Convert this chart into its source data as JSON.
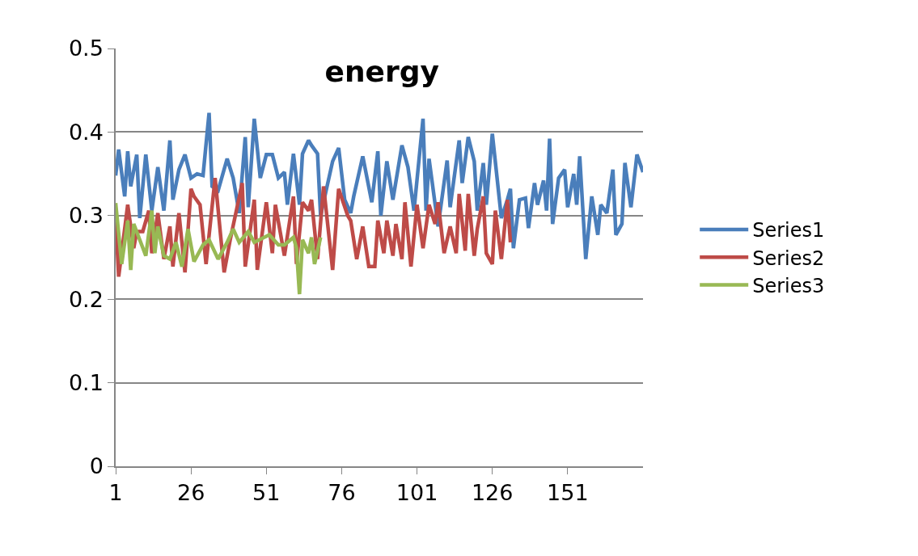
{
  "chart_data": {
    "type": "line",
    "title": "energy",
    "xlim": [
      1,
      176
    ],
    "xticks": [
      1,
      26,
      51,
      76,
      101,
      126,
      151
    ],
    "ylim": [
      0,
      0.5
    ],
    "yticks": [
      0,
      0.1,
      0.2,
      0.3,
      0.4,
      0.5
    ],
    "grid": "y",
    "legend": "right",
    "marker": "none",
    "line_style": "solid",
    "series": [
      {
        "name": "Series1",
        "color": "#4a7ebb",
        "x": [
          1,
          2,
          4,
          5,
          6,
          8,
          9,
          11,
          13,
          15,
          17,
          19,
          20,
          22,
          24,
          26,
          28,
          30,
          32,
          33,
          35,
          38,
          40,
          42,
          44,
          45,
          47,
          49,
          51,
          53,
          55,
          57,
          58,
          60,
          62,
          63,
          65,
          66,
          68,
          69,
          73,
          75,
          77,
          79,
          80,
          83,
          86,
          88,
          89,
          91,
          93,
          96,
          98,
          100,
          103,
          104,
          105,
          108,
          111,
          112,
          115,
          116,
          118,
          120,
          121,
          123,
          124,
          126,
          129,
          131,
          132,
          133,
          135,
          137,
          138,
          140,
          141,
          143,
          144,
          145,
          146,
          148,
          150,
          151,
          153,
          154,
          155,
          157,
          159,
          161,
          162,
          164,
          166,
          167,
          169,
          170,
          172,
          174,
          176
        ],
        "values": [
          0.348,
          0.379,
          0.323,
          0.377,
          0.335,
          0.373,
          0.297,
          0.373,
          0.306,
          0.358,
          0.306,
          0.39,
          0.319,
          0.355,
          0.373,
          0.345,
          0.35,
          0.348,
          0.423,
          0.335,
          0.33,
          0.368,
          0.345,
          0.303,
          0.394,
          0.31,
          0.416,
          0.345,
          0.373,
          0.373,
          0.345,
          0.352,
          0.313,
          0.374,
          0.313,
          0.374,
          0.39,
          0.384,
          0.374,
          0.3,
          0.365,
          0.381,
          0.319,
          0.303,
          0.323,
          0.371,
          0.316,
          0.377,
          0.3,
          0.365,
          0.319,
          0.384,
          0.358,
          0.306,
          0.416,
          0.306,
          0.368,
          0.287,
          0.366,
          0.31,
          0.39,
          0.339,
          0.394,
          0.365,
          0.306,
          0.363,
          0.313,
          0.398,
          0.297,
          0.319,
          0.332,
          0.261,
          0.319,
          0.321,
          0.285,
          0.339,
          0.313,
          0.342,
          0.306,
          0.392,
          0.29,
          0.345,
          0.355,
          0.31,
          0.35,
          0.313,
          0.371,
          0.248,
          0.323,
          0.277,
          0.313,
          0.303,
          0.355,
          0.277,
          0.29,
          0.363,
          0.31,
          0.373,
          0.352
        ]
      },
      {
        "name": "Series2",
        "color": "#be4b48",
        "x": [
          1,
          2,
          5,
          7,
          8,
          10,
          12,
          13,
          15,
          17,
          19,
          20,
          22,
          24,
          26,
          27,
          29,
          31,
          34,
          37,
          39,
          43,
          44,
          47,
          48,
          51,
          53,
          54,
          57,
          60,
          61,
          63,
          65,
          66,
          68,
          70,
          73,
          75,
          78,
          79,
          81,
          83,
          85,
          87,
          88,
          90,
          91,
          93,
          94,
          96,
          97,
          99,
          101,
          103,
          105,
          107,
          108,
          110,
          112,
          114,
          115,
          117,
          118,
          120,
          121,
          123,
          124,
          126,
          127,
          129,
          131,
          132
        ],
        "values": [
          0.297,
          0.227,
          0.313,
          0.261,
          0.281,
          0.281,
          0.306,
          0.255,
          0.303,
          0.248,
          0.287,
          0.239,
          0.303,
          0.232,
          0.332,
          0.323,
          0.313,
          0.242,
          0.345,
          0.232,
          0.271,
          0.339,
          0.239,
          0.319,
          0.235,
          0.316,
          0.255,
          0.313,
          0.252,
          0.323,
          0.242,
          0.316,
          0.306,
          0.319,
          0.248,
          0.335,
          0.235,
          0.332,
          0.3,
          0.294,
          0.248,
          0.287,
          0.239,
          0.239,
          0.294,
          0.255,
          0.294,
          0.252,
          0.29,
          0.248,
          0.316,
          0.239,
          0.313,
          0.261,
          0.313,
          0.29,
          0.316,
          0.255,
          0.287,
          0.255,
          0.326,
          0.258,
          0.326,
          0.252,
          0.284,
          0.323,
          0.255,
          0.242,
          0.306,
          0.248,
          0.319,
          0.268
        ]
      },
      {
        "name": "Series3",
        "color": "#98b954",
        "x": [
          1,
          3,
          5,
          6,
          7,
          9,
          11,
          13,
          14,
          15,
          17,
          19,
          21,
          23,
          25,
          27,
          30,
          32,
          35,
          38,
          40,
          42,
          45,
          47,
          52,
          55,
          57,
          60,
          61,
          62,
          63,
          65,
          66,
          67,
          69
        ],
        "values": [
          0.315,
          0.242,
          0.294,
          0.235,
          0.29,
          0.271,
          0.252,
          0.306,
          0.255,
          0.287,
          0.252,
          0.248,
          0.268,
          0.239,
          0.284,
          0.245,
          0.265,
          0.271,
          0.248,
          0.268,
          0.284,
          0.268,
          0.281,
          0.268,
          0.277,
          0.265,
          0.265,
          0.274,
          0.261,
          0.206,
          0.271,
          0.255,
          0.274,
          0.242,
          0.274
        ]
      }
    ]
  }
}
